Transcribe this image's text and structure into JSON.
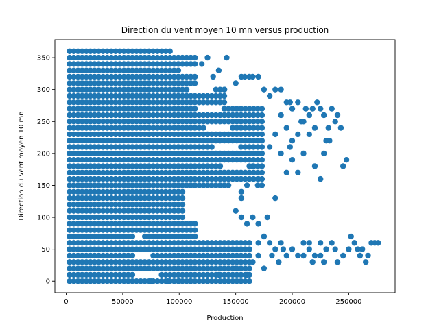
{
  "chart_data": {
    "type": "scatter",
    "title": "Direction du vent moyen 10 mn versus production",
    "xlabel": "Production",
    "ylabel": "Direction du vent moyen 10 mn",
    "xlim": [
      -10000,
      291000
    ],
    "ylim": [
      -18,
      378
    ],
    "x_ticks": [
      0,
      50000,
      100000,
      150000,
      200000,
      250000
    ],
    "y_ticks": [
      0,
      50,
      100,
      150,
      200,
      250,
      300,
      350
    ],
    "grid": false,
    "legend": "none",
    "marker_color": "#1f77b4",
    "dense_regions": [
      {
        "x_range": [
          3000,
          120000
        ],
        "y_range": [
          0,
          360
        ],
        "y_step": 10
      },
      {
        "x_range": [
          3000,
          165000
        ],
        "y_range": [
          0,
          60
        ],
        "y_step": 10
      },
      {
        "x_range": [
          3000,
          175000
        ],
        "y_range": [
          150,
          270
        ],
        "y_step": 10
      }
    ],
    "points": [
      [
        120000,
        340
      ],
      [
        125000,
        350
      ],
      [
        130000,
        320
      ],
      [
        135000,
        330
      ],
      [
        140000,
        300
      ],
      [
        142000,
        350
      ],
      [
        150000,
        310
      ],
      [
        155000,
        320
      ],
      [
        158000,
        320
      ],
      [
        162000,
        320
      ],
      [
        165000,
        320
      ],
      [
        170000,
        320
      ],
      [
        175000,
        300
      ],
      [
        180000,
        290
      ],
      [
        185000,
        300
      ],
      [
        190000,
        300
      ],
      [
        195000,
        280
      ],
      [
        198000,
        280
      ],
      [
        200000,
        270
      ],
      [
        205000,
        280
      ],
      [
        208000,
        250
      ],
      [
        212000,
        270
      ],
      [
        215000,
        260
      ],
      [
        218000,
        270
      ],
      [
        220000,
        240
      ],
      [
        222000,
        280
      ],
      [
        225000,
        270
      ],
      [
        228000,
        260
      ],
      [
        230000,
        220
      ],
      [
        232000,
        240
      ],
      [
        235000,
        270
      ],
      [
        238000,
        250
      ],
      [
        240000,
        260
      ],
      [
        243000,
        240
      ],
      [
        245000,
        180
      ],
      [
        248000,
        190
      ],
      [
        210000,
        200
      ],
      [
        215000,
        230
      ],
      [
        220000,
        180
      ],
      [
        225000,
        160
      ],
      [
        228000,
        200
      ],
      [
        233000,
        220
      ],
      [
        195000,
        170
      ],
      [
        200000,
        190
      ],
      [
        205000,
        170
      ],
      [
        190000,
        200
      ],
      [
        185000,
        130
      ],
      [
        180000,
        210
      ],
      [
        155000,
        140
      ],
      [
        160000,
        150
      ],
      [
        150000,
        110
      ],
      [
        155000,
        100
      ],
      [
        160000,
        90
      ],
      [
        165000,
        100
      ],
      [
        170000,
        90
      ],
      [
        178000,
        100
      ],
      [
        155000,
        130
      ],
      [
        170000,
        160
      ],
      [
        165000,
        180
      ],
      [
        185000,
        230
      ],
      [
        190000,
        260
      ],
      [
        195000,
        240
      ],
      [
        200000,
        220
      ],
      [
        205000,
        230
      ],
      [
        210000,
        250
      ],
      [
        198000,
        210
      ],
      [
        170000,
        60
      ],
      [
        175000,
        70
      ],
      [
        180000,
        60
      ],
      [
        185000,
        50
      ],
      [
        190000,
        60
      ],
      [
        195000,
        40
      ],
      [
        200000,
        50
      ],
      [
        205000,
        40
      ],
      [
        210000,
        60
      ],
      [
        215000,
        50
      ],
      [
        220000,
        40
      ],
      [
        225000,
        60
      ],
      [
        230000,
        50
      ],
      [
        235000,
        60
      ],
      [
        240000,
        30
      ],
      [
        245000,
        40
      ],
      [
        250000,
        50
      ],
      [
        252000,
        70
      ],
      [
        255000,
        60
      ],
      [
        258000,
        50
      ],
      [
        260000,
        40
      ],
      [
        262000,
        50
      ],
      [
        265000,
        30
      ],
      [
        267000,
        40
      ],
      [
        270000,
        60
      ],
      [
        273000,
        60
      ],
      [
        276000,
        60
      ],
      [
        210000,
        40
      ],
      [
        215000,
        60
      ],
      [
        225000,
        40
      ],
      [
        160000,
        10
      ],
      [
        150000,
        20
      ],
      [
        140000,
        0
      ],
      [
        125000,
        0
      ],
      [
        110000,
        0
      ],
      [
        100000,
        0
      ],
      [
        90000,
        0
      ],
      [
        75000,
        0
      ],
      [
        135000,
        10
      ],
      [
        165000,
        30
      ],
      [
        170000,
        40
      ],
      [
        175000,
        20
      ],
      [
        182000,
        40
      ],
      [
        188000,
        30
      ],
      [
        192000,
        50
      ],
      [
        238000,
        50
      ],
      [
        228000,
        30
      ],
      [
        218000,
        30
      ]
    ]
  }
}
